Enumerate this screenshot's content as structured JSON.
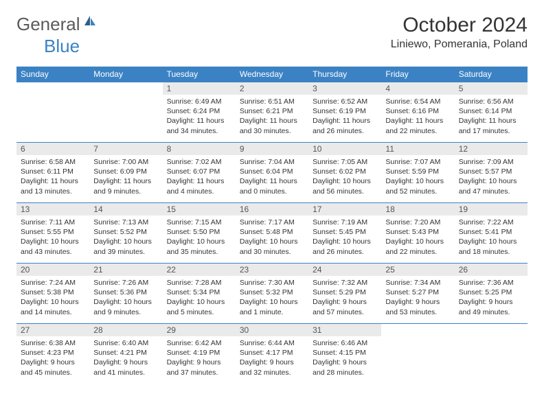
{
  "logo": {
    "general": "General",
    "blue": "Blue"
  },
  "title": "October 2024",
  "location": "Liniewo, Pomerania, Poland",
  "colors": {
    "header_bg": "#3b82c4",
    "header_text": "#ffffff",
    "daynum_bg": "#eaeaea",
    "border": "#3b82c4",
    "text": "#333333"
  },
  "weekdays": [
    "Sunday",
    "Monday",
    "Tuesday",
    "Wednesday",
    "Thursday",
    "Friday",
    "Saturday"
  ],
  "weeks": [
    [
      null,
      null,
      {
        "n": "1",
        "sr": "Sunrise: 6:49 AM",
        "ss": "Sunset: 6:24 PM",
        "dl": "Daylight: 11 hours and 34 minutes."
      },
      {
        "n": "2",
        "sr": "Sunrise: 6:51 AM",
        "ss": "Sunset: 6:21 PM",
        "dl": "Daylight: 11 hours and 30 minutes."
      },
      {
        "n": "3",
        "sr": "Sunrise: 6:52 AM",
        "ss": "Sunset: 6:19 PM",
        "dl": "Daylight: 11 hours and 26 minutes."
      },
      {
        "n": "4",
        "sr": "Sunrise: 6:54 AM",
        "ss": "Sunset: 6:16 PM",
        "dl": "Daylight: 11 hours and 22 minutes."
      },
      {
        "n": "5",
        "sr": "Sunrise: 6:56 AM",
        "ss": "Sunset: 6:14 PM",
        "dl": "Daylight: 11 hours and 17 minutes."
      }
    ],
    [
      {
        "n": "6",
        "sr": "Sunrise: 6:58 AM",
        "ss": "Sunset: 6:11 PM",
        "dl": "Daylight: 11 hours and 13 minutes."
      },
      {
        "n": "7",
        "sr": "Sunrise: 7:00 AM",
        "ss": "Sunset: 6:09 PM",
        "dl": "Daylight: 11 hours and 9 minutes."
      },
      {
        "n": "8",
        "sr": "Sunrise: 7:02 AM",
        "ss": "Sunset: 6:07 PM",
        "dl": "Daylight: 11 hours and 4 minutes."
      },
      {
        "n": "9",
        "sr": "Sunrise: 7:04 AM",
        "ss": "Sunset: 6:04 PM",
        "dl": "Daylight: 11 hours and 0 minutes."
      },
      {
        "n": "10",
        "sr": "Sunrise: 7:05 AM",
        "ss": "Sunset: 6:02 PM",
        "dl": "Daylight: 10 hours and 56 minutes."
      },
      {
        "n": "11",
        "sr": "Sunrise: 7:07 AM",
        "ss": "Sunset: 5:59 PM",
        "dl": "Daylight: 10 hours and 52 minutes."
      },
      {
        "n": "12",
        "sr": "Sunrise: 7:09 AM",
        "ss": "Sunset: 5:57 PM",
        "dl": "Daylight: 10 hours and 47 minutes."
      }
    ],
    [
      {
        "n": "13",
        "sr": "Sunrise: 7:11 AM",
        "ss": "Sunset: 5:55 PM",
        "dl": "Daylight: 10 hours and 43 minutes."
      },
      {
        "n": "14",
        "sr": "Sunrise: 7:13 AM",
        "ss": "Sunset: 5:52 PM",
        "dl": "Daylight: 10 hours and 39 minutes."
      },
      {
        "n": "15",
        "sr": "Sunrise: 7:15 AM",
        "ss": "Sunset: 5:50 PM",
        "dl": "Daylight: 10 hours and 35 minutes."
      },
      {
        "n": "16",
        "sr": "Sunrise: 7:17 AM",
        "ss": "Sunset: 5:48 PM",
        "dl": "Daylight: 10 hours and 30 minutes."
      },
      {
        "n": "17",
        "sr": "Sunrise: 7:19 AM",
        "ss": "Sunset: 5:45 PM",
        "dl": "Daylight: 10 hours and 26 minutes."
      },
      {
        "n": "18",
        "sr": "Sunrise: 7:20 AM",
        "ss": "Sunset: 5:43 PM",
        "dl": "Daylight: 10 hours and 22 minutes."
      },
      {
        "n": "19",
        "sr": "Sunrise: 7:22 AM",
        "ss": "Sunset: 5:41 PM",
        "dl": "Daylight: 10 hours and 18 minutes."
      }
    ],
    [
      {
        "n": "20",
        "sr": "Sunrise: 7:24 AM",
        "ss": "Sunset: 5:38 PM",
        "dl": "Daylight: 10 hours and 14 minutes."
      },
      {
        "n": "21",
        "sr": "Sunrise: 7:26 AM",
        "ss": "Sunset: 5:36 PM",
        "dl": "Daylight: 10 hours and 9 minutes."
      },
      {
        "n": "22",
        "sr": "Sunrise: 7:28 AM",
        "ss": "Sunset: 5:34 PM",
        "dl": "Daylight: 10 hours and 5 minutes."
      },
      {
        "n": "23",
        "sr": "Sunrise: 7:30 AM",
        "ss": "Sunset: 5:32 PM",
        "dl": "Daylight: 10 hours and 1 minute."
      },
      {
        "n": "24",
        "sr": "Sunrise: 7:32 AM",
        "ss": "Sunset: 5:29 PM",
        "dl": "Daylight: 9 hours and 57 minutes."
      },
      {
        "n": "25",
        "sr": "Sunrise: 7:34 AM",
        "ss": "Sunset: 5:27 PM",
        "dl": "Daylight: 9 hours and 53 minutes."
      },
      {
        "n": "26",
        "sr": "Sunrise: 7:36 AM",
        "ss": "Sunset: 5:25 PM",
        "dl": "Daylight: 9 hours and 49 minutes."
      }
    ],
    [
      {
        "n": "27",
        "sr": "Sunrise: 6:38 AM",
        "ss": "Sunset: 4:23 PM",
        "dl": "Daylight: 9 hours and 45 minutes."
      },
      {
        "n": "28",
        "sr": "Sunrise: 6:40 AM",
        "ss": "Sunset: 4:21 PM",
        "dl": "Daylight: 9 hours and 41 minutes."
      },
      {
        "n": "29",
        "sr": "Sunrise: 6:42 AM",
        "ss": "Sunset: 4:19 PM",
        "dl": "Daylight: 9 hours and 37 minutes."
      },
      {
        "n": "30",
        "sr": "Sunrise: 6:44 AM",
        "ss": "Sunset: 4:17 PM",
        "dl": "Daylight: 9 hours and 32 minutes."
      },
      {
        "n": "31",
        "sr": "Sunrise: 6:46 AM",
        "ss": "Sunset: 4:15 PM",
        "dl": "Daylight: 9 hours and 28 minutes."
      },
      null,
      null
    ]
  ]
}
